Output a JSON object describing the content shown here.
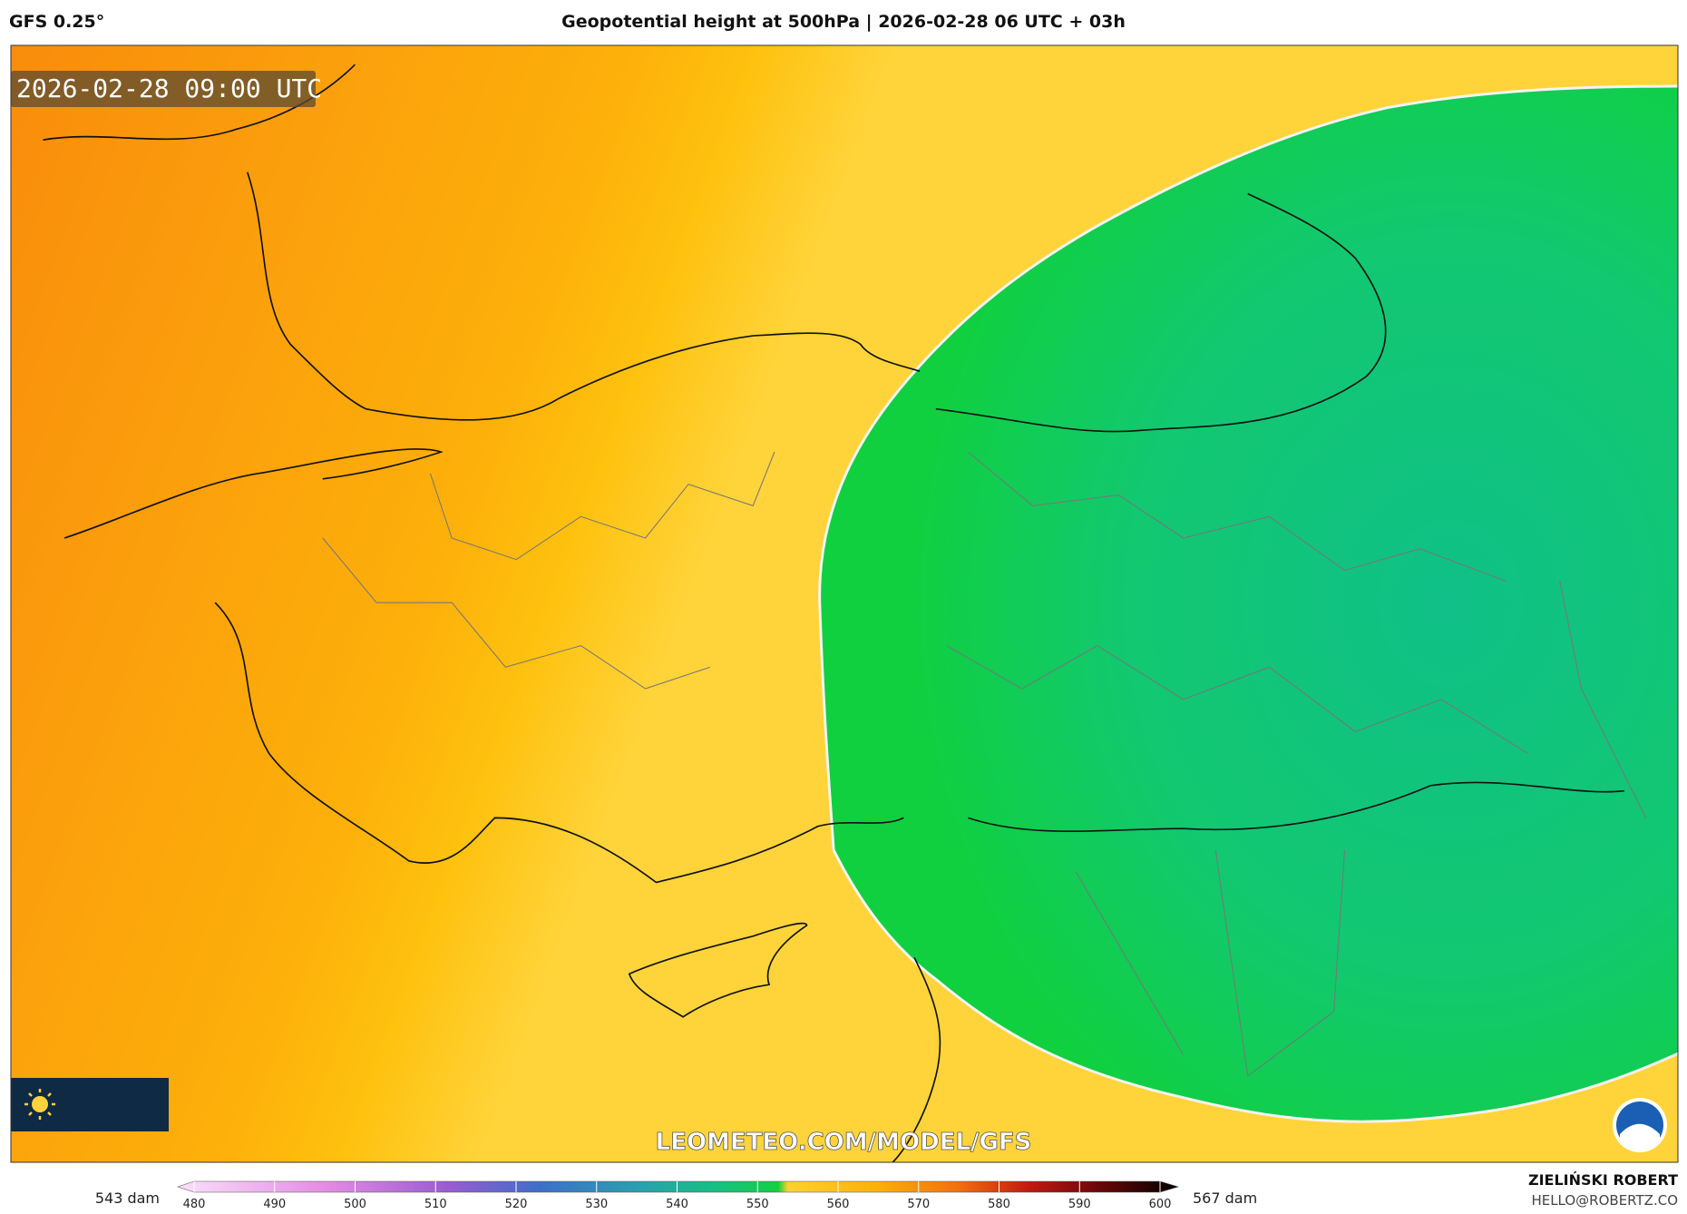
{
  "header": {
    "model": "GFS 0.25°",
    "title": "Geopotential height at 500hPa | 2026-02-28 06 UTC + 03h"
  },
  "map": {
    "timestamp": "2026-02-28 09:00 UTC",
    "watermark": "LEOMETEO.COM/MODEL/GFS"
  },
  "colorbar": {
    "min_label": "543 dam",
    "max_label": "567 dam",
    "xlim": [
      480,
      600
    ],
    "xticks": [
      480,
      490,
      500,
      510,
      520,
      530,
      540,
      550,
      560,
      570,
      580,
      590,
      600
    ]
  },
  "credit": {
    "name": "ZIELIŃSKI ROBERT",
    "email": "HELLO@ROBERTZ.CO"
  }
}
